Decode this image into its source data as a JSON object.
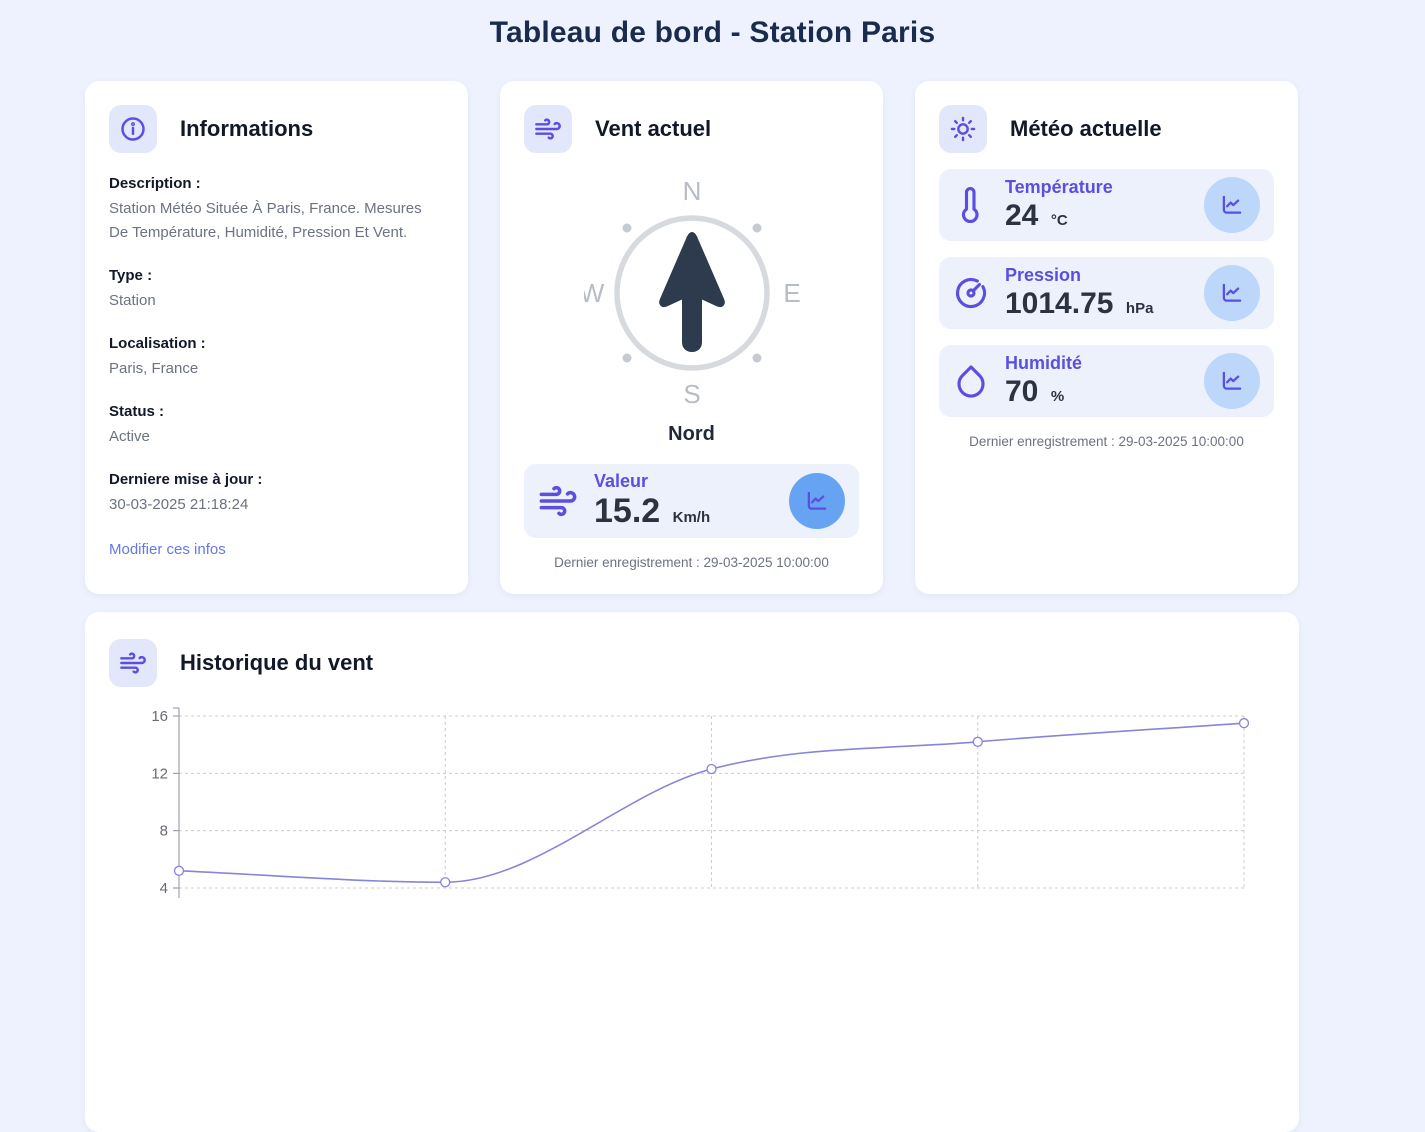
{
  "page": {
    "title": "Tableau de bord - Station Paris"
  },
  "colors": {
    "page_background": "#edf2fe",
    "accent_purple": "#5b4fe0",
    "icon_box_bg": "#e3e7fb",
    "metric_row_bg": "#edf1fc",
    "wind_chart_button": "#66a3f2",
    "weather_chart_button": "#bcd7fa",
    "link_blue": "#6478e8",
    "chart_line": "#8884d8"
  },
  "info_card": {
    "title": "Informations",
    "fields": [
      {
        "label": "Description :",
        "value": "Station Météo Située À Paris, France. Mesures De Température, Humidité, Pression Et Vent."
      },
      {
        "label": "Type :",
        "value": "Station"
      },
      {
        "label": "Localisation :",
        "value": "Paris, France"
      },
      {
        "label": "Status :",
        "value": "Active"
      },
      {
        "label": "Derniere mise à jour :",
        "value": "30-03-2025 21:18:24"
      }
    ],
    "edit_link": "Modifier ces infos"
  },
  "wind_card": {
    "title": "Vent actuel",
    "compass": {
      "north": "N",
      "east": "E",
      "south": "S",
      "west": "W"
    },
    "direction_label": "Nord",
    "value_label": "Valeur",
    "value": "15.2",
    "unit": "Km/h",
    "last_record": "Dernier enregistrement : 29-03-2025 10:00:00"
  },
  "weather_card": {
    "title": "Météo actuelle",
    "metrics": [
      {
        "icon": "thermometer-icon",
        "label": "Température",
        "value": "24",
        "unit": "°C"
      },
      {
        "icon": "gauge-icon",
        "label": "Pression",
        "value": "1014.75",
        "unit": "hPa"
      },
      {
        "icon": "droplet-icon",
        "label": "Humidité",
        "value": "70",
        "unit": "%"
      }
    ],
    "last_record": "Dernier enregistrement : 29-03-2025 10:00:00"
  },
  "history_card": {
    "title": "Historique du vent"
  },
  "chart_data": {
    "type": "line",
    "series": [
      {
        "name": "vent",
        "values": [
          5.2,
          4.4,
          12.3,
          14.2,
          15.5
        ]
      }
    ],
    "yticks": [
      4,
      8,
      12,
      16
    ],
    "ylim": [
      4,
      16
    ],
    "xlabel": "",
    "ylabel": "",
    "grid": "dashed",
    "legend_position": "none",
    "line_color": "#8884d8",
    "marker": "open-circle",
    "note": "x-axis labels cut off below viewport"
  }
}
